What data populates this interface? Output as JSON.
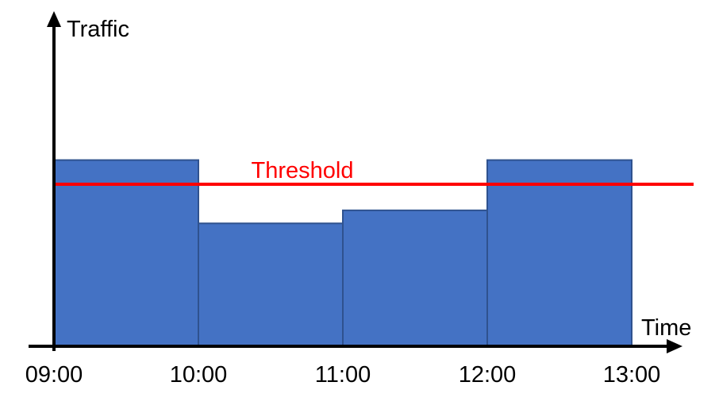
{
  "chart_data": {
    "type": "bar",
    "title": "",
    "xlabel": "Time",
    "ylabel": "Traffic",
    "x_ticks": [
      "09:00",
      "10:00",
      "11:00",
      "12:00",
      "13:00"
    ],
    "bins": [
      {
        "start": "09:00",
        "end": "10:00",
        "value": 100
      },
      {
        "start": "10:00",
        "end": "11:00",
        "value": 66
      },
      {
        "start": "11:00",
        "end": "12:00",
        "value": 73
      },
      {
        "start": "12:00",
        "end": "13:00",
        "value": 100
      }
    ],
    "ylim": [
      0,
      180
    ],
    "threshold": {
      "label": "Threshold",
      "value": 87
    },
    "y_ticks_shown": false,
    "grid": false,
    "legend": "none",
    "colors": {
      "bar_fill": "#4472c4",
      "bar_edge": "#2f528f",
      "threshold": "#ff0000",
      "axis": "#000000"
    }
  }
}
